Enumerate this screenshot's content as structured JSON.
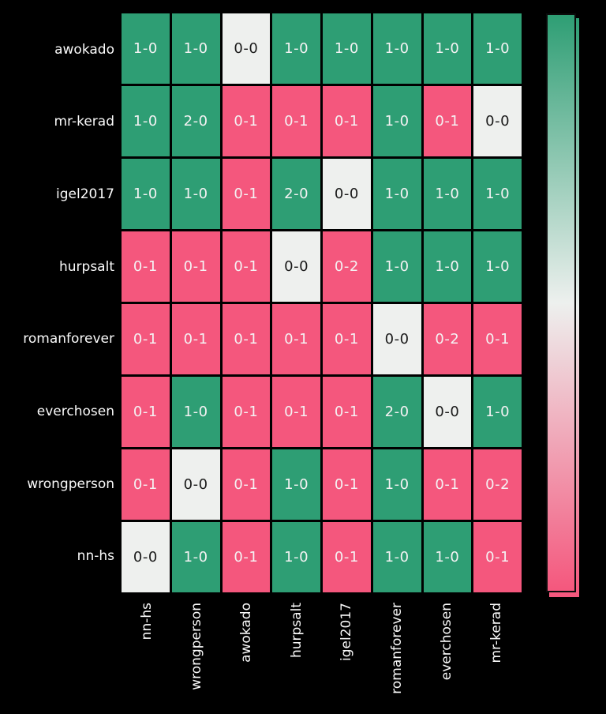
{
  "figure": {
    "background_color": "#000000"
  },
  "chart_data": {
    "type": "heatmap",
    "title": "",
    "row_labels": [
      "awokado",
      "mr-kerad",
      "igel2017",
      "hurpsalt",
      "romanforever",
      "everchosen",
      "wrongperson",
      "nn-hs"
    ],
    "col_labels": [
      "nn-hs",
      "wrongperson",
      "awokado",
      "hurpsalt",
      "igel2017",
      "romanforever",
      "everchosen",
      "mr-kerad"
    ],
    "values": [
      [
        "1-0",
        "1-0",
        "0-0",
        "1-0",
        "1-0",
        "1-0",
        "1-0",
        "1-0"
      ],
      [
        "1-0",
        "2-0",
        "0-1",
        "0-1",
        "0-1",
        "1-0",
        "0-1",
        "0-0"
      ],
      [
        "1-0",
        "1-0",
        "0-1",
        "2-0",
        "0-0",
        "1-0",
        "1-0",
        "1-0"
      ],
      [
        "0-1",
        "0-1",
        "0-1",
        "0-0",
        "0-2",
        "1-0",
        "1-0",
        "1-0"
      ],
      [
        "0-1",
        "0-1",
        "0-1",
        "0-1",
        "0-1",
        "0-0",
        "0-2",
        "0-1"
      ],
      [
        "0-1",
        "1-0",
        "0-1",
        "0-1",
        "0-1",
        "2-0",
        "0-0",
        "1-0"
      ],
      [
        "0-1",
        "0-0",
        "0-1",
        "1-0",
        "0-1",
        "1-0",
        "0-1",
        "0-2"
      ],
      [
        "0-0",
        "1-0",
        "0-1",
        "1-0",
        "0-1",
        "1-0",
        "1-0",
        "0-1"
      ]
    ],
    "colors": {
      "win": "#2e9e74",
      "loss": "#f4577d",
      "draw": "#eef0ee",
      "grid_line": "#0b0b0b",
      "text_on_color": "#f4f2f3",
      "text_on_draw": "#1a1a1a",
      "axis_label": "#fafafa"
    },
    "colorbar": {
      "orientation": "vertical",
      "top_color": "#2e9e74",
      "mid_color": "#edf0ee",
      "bottom_color": "#f4577d"
    },
    "grid": true,
    "legend_position": "right-colorbar"
  }
}
